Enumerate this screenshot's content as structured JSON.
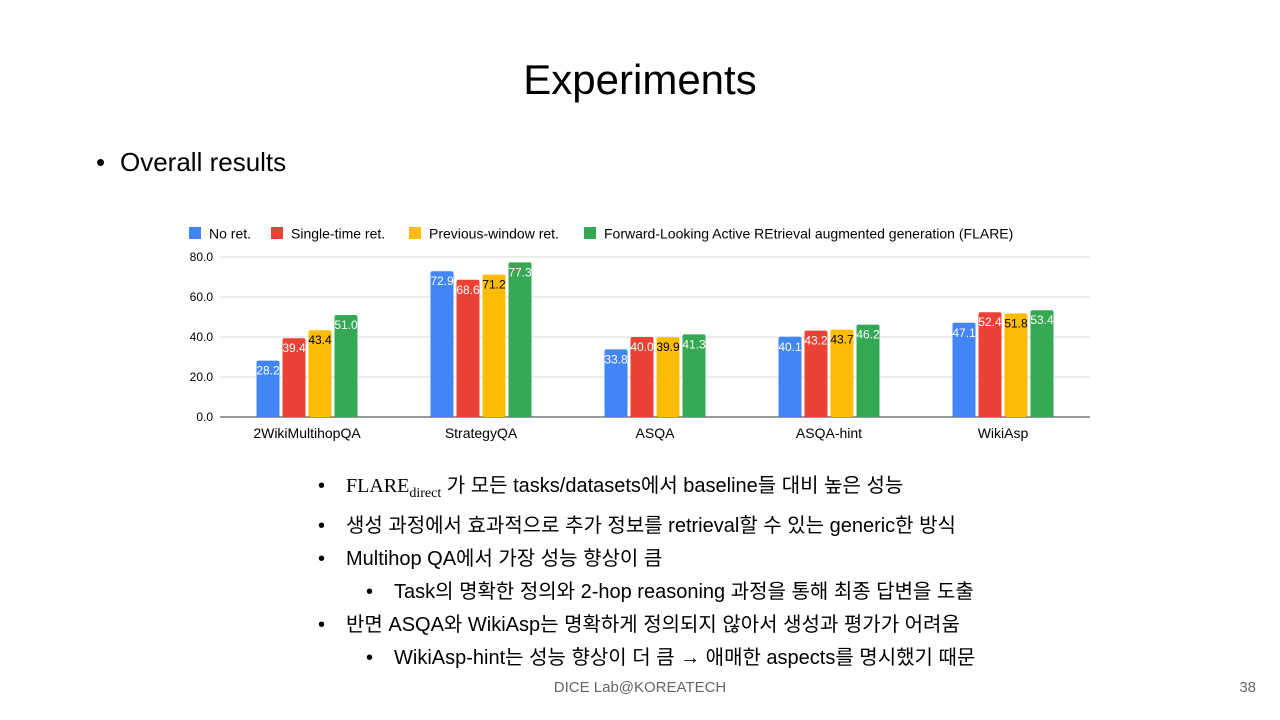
{
  "slide": {
    "title": "Experiments",
    "bullet": "Overall results",
    "footer": "DICE Lab@KOREATECH",
    "page_number": "38"
  },
  "colors": {
    "no_ret": "#4285F4",
    "single": "#EA4335",
    "previous": "#FBBC04",
    "flare": "#34A853"
  },
  "chart_data": {
    "type": "bar",
    "categories": [
      "2WikiMultihopQA",
      "StrategyQA",
      "ASQA",
      "ASQA-hint",
      "WikiAsp"
    ],
    "series": [
      {
        "name": "No ret.",
        "values": [
          28.2,
          72.9,
          33.8,
          40.1,
          47.1
        ]
      },
      {
        "name": "Single-time ret.",
        "values": [
          39.4,
          68.6,
          40.0,
          43.2,
          52.4
        ]
      },
      {
        "name": "Previous-window ret.",
        "values": [
          43.4,
          71.2,
          39.9,
          43.7,
          51.8
        ]
      },
      {
        "name": "Forward-Looking Active REtrieval augmented generation (FLARE)",
        "values": [
          51.0,
          77.3,
          41.3,
          46.2,
          53.4
        ]
      }
    ],
    "yticks": [
      "0.0",
      "20.0",
      "40.0",
      "60.0",
      "80.0"
    ],
    "ylim": [
      0,
      80
    ],
    "legend": "top",
    "grid": true
  },
  "notes": {
    "n1_base": "FLARE",
    "n1_sub": "direct",
    "n1_rest": " 가 모든 tasks/datasets에서 baseline들 대비 높은 성능",
    "n2": "생성 과정에서 효과적으로 추가 정보를 retrieval할 수 있는 generic한 방식",
    "n3": "Multihop QA에서 가장 성능 향상이 큼",
    "n3a": "Task의 명확한 정의와 2-hop reasoning 과정을 통해 최종 답변을 도출",
    "n4": "반면 ASQA와 WikiAsp는 명확하게 정의되지 않아서 생성과 평가가 어려움",
    "n4a": "WikiAsp-hint는 성능 향상이 더 큼 → 애매한 aspects를 명시했기 때문"
  }
}
